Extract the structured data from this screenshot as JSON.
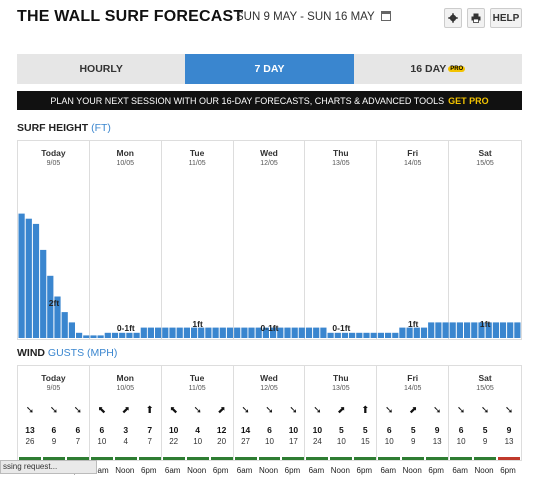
{
  "header": {
    "title": "THE WALL SURF FORECAST",
    "dates": "SUN 9 MAY - SUN 16 MAY",
    "settings_icon": "gear-icon",
    "print_icon": "printer-icon",
    "help_label": "HELP"
  },
  "tabs": [
    {
      "label": "HOURLY",
      "active": false
    },
    {
      "label": "7 DAY",
      "active": true
    },
    {
      "label": "16 DAY",
      "active": false,
      "badge": "PRO"
    }
  ],
  "promo": {
    "text": "PLAN YOUR NEXT SESSION WITH OUR 16-DAY FORECASTS, CHARTS & ADVANCED TOOLS",
    "cta": "GET PRO"
  },
  "surf": {
    "title": "SURF HEIGHT",
    "unit": "(FT)"
  },
  "wind": {
    "title": "WIND",
    "gusts": "GUSTS",
    "unit": "(MPH)"
  },
  "days": [
    {
      "name": "Today",
      "date": "9/05",
      "surf_label": "2ft"
    },
    {
      "name": "Mon",
      "date": "10/05",
      "surf_label": "0-1ft"
    },
    {
      "name": "Tue",
      "date": "11/05",
      "surf_label": "1ft"
    },
    {
      "name": "Wed",
      "date": "12/05",
      "surf_label": "0-1ft"
    },
    {
      "name": "Thu",
      "date": "13/05",
      "surf_label": "0-1ft"
    },
    {
      "name": "Fri",
      "date": "14/05",
      "surf_label": "1ft"
    },
    {
      "name": "Sat",
      "date": "15/05",
      "surf_label": "1ft"
    }
  ],
  "chart_data": {
    "type": "bar",
    "ylabel": "",
    "values": [
      2.4,
      2.3,
      2.2,
      1.7,
      1.2,
      0.8,
      0.5,
      0.3,
      0.1,
      0.05,
      0.05,
      0.05,
      0.1,
      0.1,
      0.1,
      0.1,
      0.1,
      0.2,
      0.2,
      0.2,
      0.2,
      0.2,
      0.2,
      0.2,
      0.2,
      0.2,
      0.2,
      0.2,
      0.2,
      0.2,
      0.2,
      0.2,
      0.2,
      0.2,
      0.2,
      0.2,
      0.2,
      0.2,
      0.2,
      0.2,
      0.2,
      0.2,
      0.2,
      0.1,
      0.1,
      0.1,
      0.1,
      0.1,
      0.1,
      0.1,
      0.1,
      0.1,
      0.1,
      0.2,
      0.2,
      0.2,
      0.2,
      0.3,
      0.3,
      0.3,
      0.3,
      0.3,
      0.3,
      0.3,
      0.3,
      0.3,
      0.3,
      0.3,
      0.3,
      0.3
    ]
  },
  "wind_data": [
    {
      "speeds": [
        "13",
        "6",
        "6"
      ],
      "gusts": [
        "26",
        "9",
        "7"
      ],
      "arrows": [
        "➘",
        "➘",
        "➘"
      ],
      "colors": [
        "#2e7d32",
        "#2e7d32",
        "#2e7d32"
      ]
    },
    {
      "speeds": [
        "6",
        "3",
        "7"
      ],
      "gusts": [
        "10",
        "4",
        "7"
      ],
      "arrows": [
        "⬉",
        "⬈",
        "⬆"
      ],
      "colors": [
        "#2e7d32",
        "#2e7d32",
        "#2e7d32"
      ]
    },
    {
      "speeds": [
        "10",
        "4",
        "12"
      ],
      "gusts": [
        "22",
        "10",
        "20"
      ],
      "arrows": [
        "⬉",
        "➘",
        "⬈"
      ],
      "colors": [
        "#2e7d32",
        "#2e7d32",
        "#2e7d32"
      ]
    },
    {
      "speeds": [
        "14",
        "6",
        "10"
      ],
      "gusts": [
        "27",
        "10",
        "17"
      ],
      "arrows": [
        "➘",
        "➘",
        "➘"
      ],
      "colors": [
        "#2e7d32",
        "#2e7d32",
        "#2e7d32"
      ]
    },
    {
      "speeds": [
        "10",
        "5",
        "5"
      ],
      "gusts": [
        "24",
        "10",
        "15"
      ],
      "arrows": [
        "➘",
        "⬈",
        "⬆"
      ],
      "colors": [
        "#2e7d32",
        "#2e7d32",
        "#2e7d32"
      ]
    },
    {
      "speeds": [
        "6",
        "5",
        "9"
      ],
      "gusts": [
        "10",
        "9",
        "13"
      ],
      "arrows": [
        "➘",
        "⬈",
        "➘"
      ],
      "colors": [
        "#2e7d32",
        "#2e7d32",
        "#2e7d32"
      ]
    },
    {
      "speeds": [
        "6",
        "5",
        "9"
      ],
      "gusts": [
        "10",
        "9",
        "13"
      ],
      "arrows": [
        "➘",
        "➘",
        "➘"
      ],
      "colors": [
        "#2e7d32",
        "#2e7d32",
        "#c0392b"
      ]
    }
  ],
  "time_labels": [
    "6am",
    "Noon",
    "6pm"
  ],
  "status_text": "ssing request..."
}
